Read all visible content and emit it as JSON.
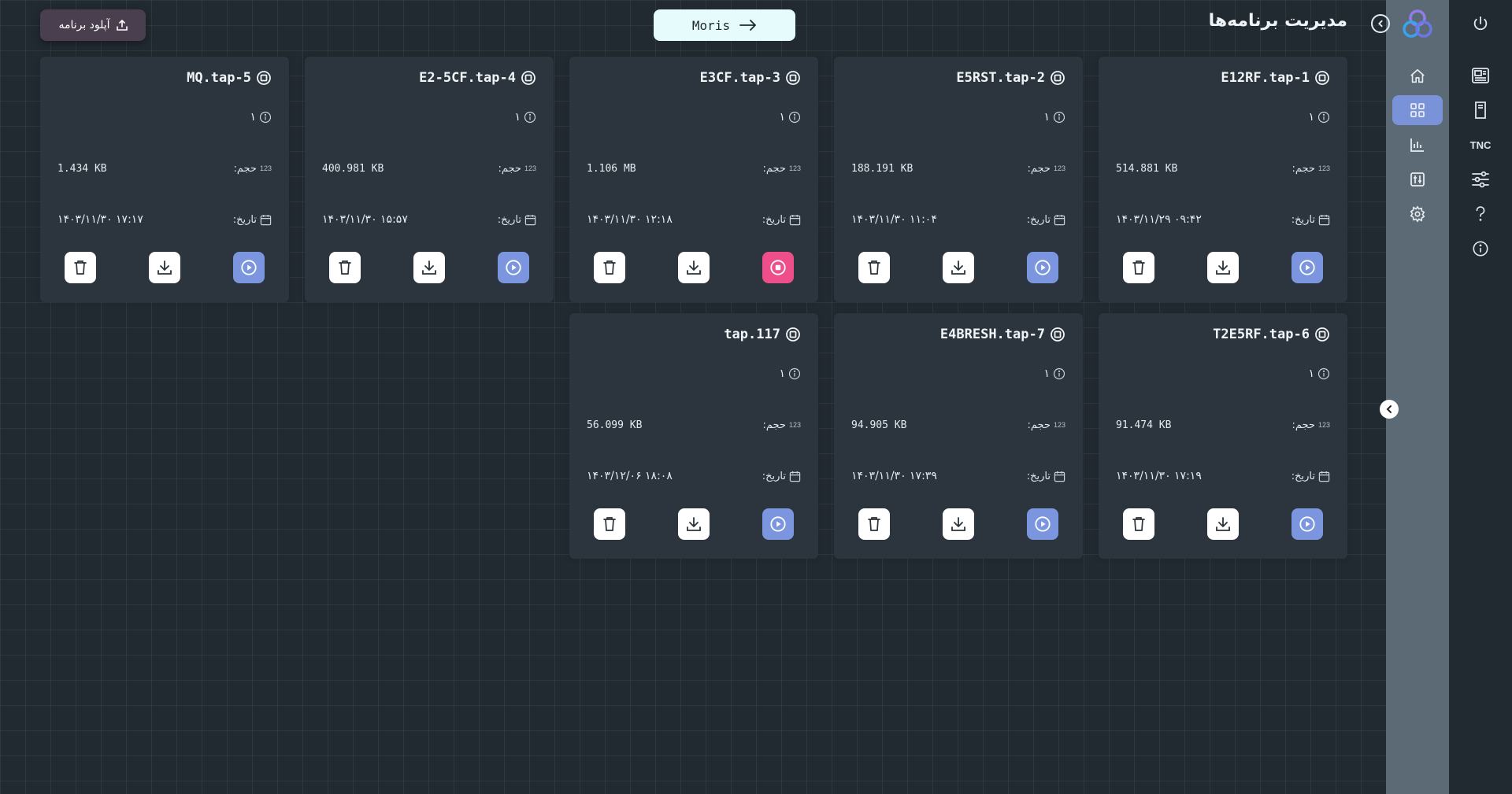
{
  "header": {
    "title": "مدیریت برنامه‌ها",
    "moris_label": "Moris",
    "upload_label": "آپلود برنامه"
  },
  "rail": {
    "tnc_label": "TNC"
  },
  "labels": {
    "size": "حجم:",
    "date": "تاریخ:",
    "size_icon_text": "123"
  },
  "colors": {
    "run_button": "#7b95de",
    "stop_button": "#ee4f8b",
    "sidebar": "#5c6a75",
    "sidebar_active": "#7a92d8"
  },
  "programs": [
    {
      "name": "1-E12RF.tap",
      "count": "۱",
      "size": "514.881 KB",
      "date": "۱۴۰۳/۱۱/۲۹ ‎۰۹:۴۲",
      "state": "play"
    },
    {
      "name": "2-E5RST.tap",
      "count": "۱",
      "size": "188.191 KB",
      "date": "۱۴۰۳/۱۱/۳۰ ‎۱۱:۰۴",
      "state": "play"
    },
    {
      "name": "3-E3CF.tap",
      "count": "۱",
      "size": "1.106 MB",
      "date": "۱۴۰۳/۱۱/۳۰ ‎۱۲:۱۸",
      "state": "stop"
    },
    {
      "name": "4-E2-5CF.tap",
      "count": "۱",
      "size": "400.981 KB",
      "date": "۱۴۰۳/۱۱/۳۰ ‎۱۵:۵۷",
      "state": "play"
    },
    {
      "name": "5-MQ.tap",
      "count": "۱",
      "size": "1.434 KB",
      "date": "۱۴۰۳/۱۱/۳۰ ‎۱۷:۱۷",
      "state": "play"
    },
    {
      "name": "6-T2E5RF.tap",
      "count": "۱",
      "size": "91.474 KB",
      "date": "۱۴۰۳/۱۱/۳۰ ‎۱۷:۱۹",
      "state": "play"
    },
    {
      "name": "7-E4BRESH.tap",
      "count": "۱",
      "size": "94.905 KB",
      "date": "۱۴۰۳/۱۱/۳۰ ‎۱۷:۳۹",
      "state": "play"
    },
    {
      "name": "117.tap",
      "count": "۱",
      "size": "56.099 KB",
      "date": "۱۴۰۳/۱۲/۰۶ ‎۱۸:۰۸",
      "state": "play"
    }
  ]
}
